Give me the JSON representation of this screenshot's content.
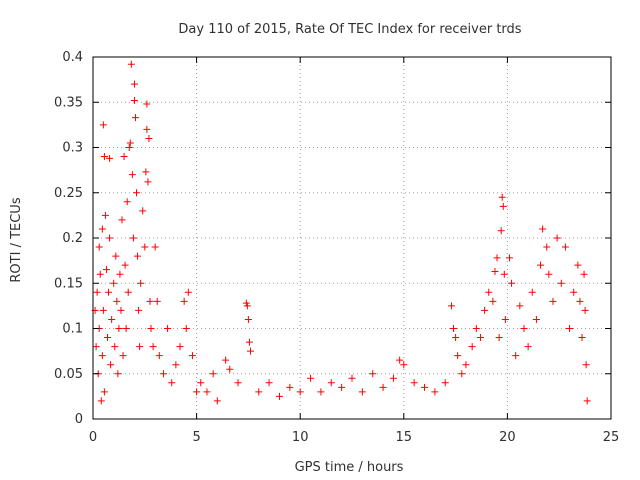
{
  "chart_data": {
    "type": "scatter",
    "title": "Day 110 of 2015, Rate Of TEC Index for receiver trds",
    "xlabel": "GPS time / hours",
    "ylabel": "ROTI / TECUs",
    "xlim": [
      0,
      25
    ],
    "ylim": [
      0,
      0.4
    ],
    "x_ticks": [
      0,
      5,
      10,
      15,
      20,
      25
    ],
    "y_ticks": [
      0,
      0.05,
      0.1,
      0.15,
      0.2,
      0.25,
      0.3,
      0.35,
      0.4
    ],
    "x_tick_labels": [
      "0",
      "5",
      "10",
      "15",
      "20",
      "25"
    ],
    "y_tick_labels": [
      "0",
      "0.05",
      "0.1",
      "0.15",
      "0.2",
      "0.25",
      "0.3",
      "0.35",
      "0.4"
    ],
    "grid": true,
    "marker": "+",
    "color": "#ff0000",
    "series": [
      {
        "name": "ROTI",
        "points": [
          [
            0.1,
            0.12
          ],
          [
            0.15,
            0.08
          ],
          [
            0.2,
            0.14
          ],
          [
            0.25,
            0.05
          ],
          [
            0.3,
            0.1
          ],
          [
            0.35,
            0.16
          ],
          [
            0.4,
            0.02
          ],
          [
            0.45,
            0.07
          ],
          [
            0.5,
            0.12
          ],
          [
            0.55,
            0.03
          ],
          [
            0.3,
            0.19
          ],
          [
            0.45,
            0.21
          ],
          [
            0.5,
            0.325
          ],
          [
            0.55,
            0.29
          ],
          [
            0.6,
            0.225
          ],
          [
            0.65,
            0.165
          ],
          [
            0.7,
            0.09
          ],
          [
            0.75,
            0.14
          ],
          [
            0.8,
            0.2
          ],
          [
            0.85,
            0.06
          ],
          [
            0.8,
            0.288
          ],
          [
            0.9,
            0.11
          ],
          [
            1.0,
            0.15
          ],
          [
            1.05,
            0.08
          ],
          [
            1.1,
            0.18
          ],
          [
            1.15,
            0.13
          ],
          [
            1.2,
            0.05
          ],
          [
            1.25,
            0.1
          ],
          [
            1.3,
            0.16
          ],
          [
            1.35,
            0.12
          ],
          [
            1.4,
            0.22
          ],
          [
            1.45,
            0.07
          ],
          [
            1.5,
            0.29
          ],
          [
            1.55,
            0.17
          ],
          [
            1.6,
            0.1
          ],
          [
            1.65,
            0.24
          ],
          [
            1.7,
            0.14
          ],
          [
            1.75,
            0.3
          ],
          [
            1.8,
            0.305
          ],
          [
            1.85,
            0.392
          ],
          [
            1.9,
            0.27
          ],
          [
            1.95,
            0.2
          ],
          [
            2.0,
            0.37
          ],
          [
            2.0,
            0.352
          ],
          [
            2.05,
            0.333
          ],
          [
            2.1,
            0.25
          ],
          [
            2.15,
            0.18
          ],
          [
            2.2,
            0.12
          ],
          [
            2.25,
            0.08
          ],
          [
            2.3,
            0.15
          ],
          [
            2.4,
            0.23
          ],
          [
            2.5,
            0.19
          ],
          [
            2.55,
            0.273
          ],
          [
            2.6,
            0.32
          ],
          [
            2.6,
            0.348
          ],
          [
            2.65,
            0.262
          ],
          [
            2.7,
            0.31
          ],
          [
            2.75,
            0.13
          ],
          [
            2.8,
            0.1
          ],
          [
            2.9,
            0.08
          ],
          [
            3.0,
            0.19
          ],
          [
            3.1,
            0.13
          ],
          [
            3.2,
            0.07
          ],
          [
            3.4,
            0.05
          ],
          [
            3.6,
            0.1
          ],
          [
            3.8,
            0.04
          ],
          [
            4.0,
            0.06
          ],
          [
            4.2,
            0.08
          ],
          [
            4.4,
            0.13
          ],
          [
            4.5,
            0.1
          ],
          [
            4.6,
            0.14
          ],
          [
            4.8,
            0.07
          ],
          [
            5.0,
            0.03
          ],
          [
            5.2,
            0.04
          ],
          [
            5.5,
            0.03
          ],
          [
            5.8,
            0.05
          ],
          [
            6.0,
            0.02
          ],
          [
            6.4,
            0.065
          ],
          [
            6.6,
            0.055
          ],
          [
            7.0,
            0.04
          ],
          [
            7.4,
            0.128
          ],
          [
            7.45,
            0.125
          ],
          [
            7.5,
            0.11
          ],
          [
            7.55,
            0.085
          ],
          [
            7.6,
            0.075
          ],
          [
            8.0,
            0.03
          ],
          [
            8.5,
            0.04
          ],
          [
            9.0,
            0.025
          ],
          [
            9.5,
            0.035
          ],
          [
            10.0,
            0.03
          ],
          [
            10.5,
            0.045
          ],
          [
            11.0,
            0.03
          ],
          [
            11.5,
            0.04
          ],
          [
            12.0,
            0.035
          ],
          [
            12.5,
            0.045
          ],
          [
            13.0,
            0.03
          ],
          [
            13.5,
            0.05
          ],
          [
            14.0,
            0.035
          ],
          [
            14.5,
            0.045
          ],
          [
            14.8,
            0.065
          ],
          [
            15.0,
            0.06
          ],
          [
            15.5,
            0.04
          ],
          [
            16.0,
            0.035
          ],
          [
            16.5,
            0.03
          ],
          [
            17.0,
            0.04
          ],
          [
            17.3,
            0.125
          ],
          [
            17.4,
            0.1
          ],
          [
            17.5,
            0.09
          ],
          [
            17.6,
            0.07
          ],
          [
            17.8,
            0.05
          ],
          [
            18.0,
            0.06
          ],
          [
            18.3,
            0.08
          ],
          [
            18.5,
            0.1
          ],
          [
            18.7,
            0.09
          ],
          [
            18.9,
            0.12
          ],
          [
            19.1,
            0.14
          ],
          [
            19.3,
            0.13
          ],
          [
            19.4,
            0.163
          ],
          [
            19.5,
            0.178
          ],
          [
            19.6,
            0.09
          ],
          [
            19.7,
            0.208
          ],
          [
            19.75,
            0.245
          ],
          [
            19.8,
            0.235
          ],
          [
            19.85,
            0.16
          ],
          [
            19.9,
            0.11
          ],
          [
            20.1,
            0.178
          ],
          [
            20.2,
            0.15
          ],
          [
            20.4,
            0.07
          ],
          [
            20.6,
            0.125
          ],
          [
            20.8,
            0.1
          ],
          [
            21.0,
            0.08
          ],
          [
            21.2,
            0.14
          ],
          [
            21.4,
            0.11
          ],
          [
            21.6,
            0.17
          ],
          [
            21.7,
            0.21
          ],
          [
            21.9,
            0.19
          ],
          [
            22.0,
            0.16
          ],
          [
            22.2,
            0.13
          ],
          [
            22.4,
            0.2
          ],
          [
            22.6,
            0.15
          ],
          [
            22.8,
            0.19
          ],
          [
            23.0,
            0.1
          ],
          [
            23.2,
            0.14
          ],
          [
            23.4,
            0.17
          ],
          [
            23.5,
            0.13
          ],
          [
            23.6,
            0.09
          ],
          [
            23.7,
            0.16
          ],
          [
            23.75,
            0.12
          ],
          [
            23.8,
            0.06
          ],
          [
            23.85,
            0.02
          ]
        ]
      }
    ]
  }
}
